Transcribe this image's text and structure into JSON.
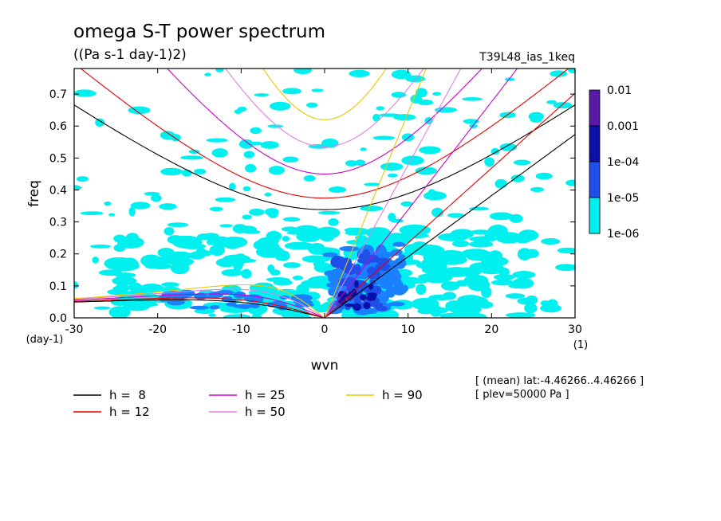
{
  "chart_data": {
    "type": "heatmap",
    "title": "omega S-T power spectrum",
    "subtitle": "((Pa s-1 day-1)2)",
    "experiment": "T39L48_ias_1keq",
    "xlabel": "wvn",
    "ylabel": "freq",
    "xunit": "(1)",
    "yunit": "(day-1)",
    "xlim": [
      -30,
      30
    ],
    "ylim": [
      0,
      0.78
    ],
    "xticks": [
      -30,
      -20,
      -10,
      0,
      10,
      20,
      30
    ],
    "xtick_labels": [
      "-30",
      "-20",
      "-10",
      "0",
      "10",
      "20",
      "30"
    ],
    "yticks": [
      0.0,
      0.1,
      0.2,
      0.3,
      0.4,
      0.5,
      0.6,
      0.7
    ],
    "ytick_labels": [
      "0.0",
      "0.1",
      "0.2",
      "0.3",
      "0.4",
      "0.5",
      "0.6",
      "0.7"
    ],
    "colorbar": {
      "levels": [
        "0.01",
        "0.001",
        "1e-04",
        "1e-05",
        "1e-06"
      ],
      "colors": [
        "#5a1aa8",
        "#0a10a8",
        "#1f4fe8",
        "#1a80ff",
        "#00f0f0"
      ]
    },
    "series": [
      {
        "name": "h =  8",
        "h": 8,
        "color": "#000000"
      },
      {
        "name": "h = 12",
        "h": 12,
        "color": "#e00000"
      },
      {
        "name": "h = 25",
        "h": 25,
        "color": "#d000c8"
      },
      {
        "name": "h = 50",
        "h": 50,
        "color": "#e080e0"
      },
      {
        "name": "h = 90",
        "h": 90,
        "color": "#e8c800"
      }
    ],
    "notes": [
      "[ (mean) lat:-4.46266..4.46266 ]",
      "[ plev=50000 Pa ]"
    ]
  }
}
